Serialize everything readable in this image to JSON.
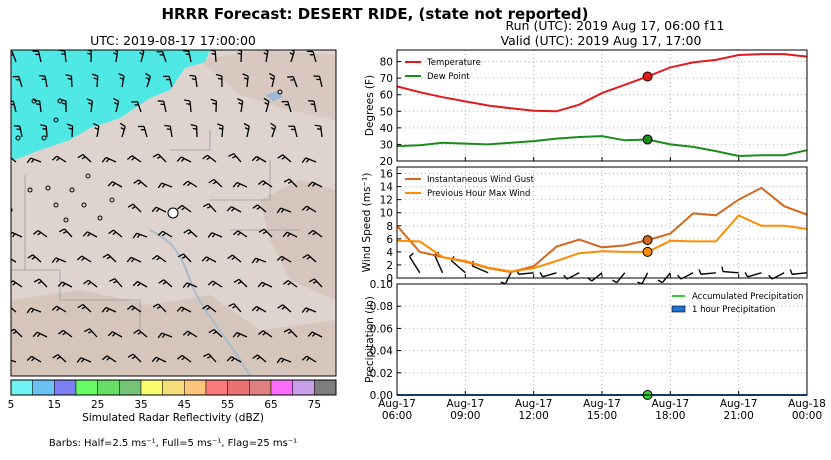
{
  "figure": {
    "title": "HRRR Forecast: DESERT RIDE, (state not reported)",
    "run_label": "Run (UTC): 2019 Aug 17, 06:00 f11",
    "valid_label": "Valid (UTC): 2019 Aug 17, 17:00"
  },
  "map": {
    "utc_label": "UTC: 2019-08-17 17:00:00",
    "colorbar_title": "Simulated Radar Reflectivity (dBZ)",
    "colorbar_ticks": [
      "5",
      "15",
      "25",
      "35",
      "45",
      "55",
      "65",
      "75"
    ],
    "colorbar_colors": [
      "#6ff3f3",
      "#6cc1f5",
      "#7b80f0",
      "#66fb66",
      "#66dd66",
      "#76c276",
      "#fbfb6e",
      "#f5dd7b",
      "#fbc57b",
      "#fb7b7b",
      "#ea7272",
      "#de8080",
      "#fb6efb",
      "#c8a0e8",
      "#7d7d7d"
    ],
    "barbs_note": "Barbs: Half=2.5 ms⁻¹, Full=5 ms⁻¹, Flag=25 ms⁻¹"
  },
  "chart_data": [
    {
      "type": "line",
      "ylabel": "Degrees (F)",
      "ylim": [
        20,
        87
      ],
      "yticks": [
        20,
        30,
        40,
        50,
        60,
        70,
        80
      ],
      "grid": true,
      "legend_placement": "top-left",
      "x_hours": [
        0,
        1,
        2,
        3,
        4,
        5,
        6,
        7,
        8,
        9,
        10,
        11,
        12,
        13,
        14,
        15,
        16,
        17,
        18
      ],
      "series": [
        {
          "name": "Temperature",
          "color": "#e31a1c",
          "values": [
            65,
            61.5,
            58.5,
            56,
            53.5,
            51.8,
            50.3,
            50,
            54,
            61,
            66,
            71,
            76.5,
            79.5,
            81,
            84,
            84.5,
            84.5,
            83
          ]
        },
        {
          "name": "Dew Point",
          "color": "#1a8c1a",
          "values": [
            29,
            29.5,
            31,
            30.5,
            30,
            31,
            32,
            33.5,
            34.5,
            35,
            32.5,
            33,
            30,
            28.5,
            26,
            23,
            23.5,
            23.5,
            26.5
          ]
        }
      ],
      "markers": [
        {
          "series": "Temperature",
          "hour": 11,
          "value": 71
        },
        {
          "series": "Dew Point",
          "hour": 11,
          "value": 33
        }
      ]
    },
    {
      "type": "line",
      "ylabel": "Wind Speed (ms⁻¹)",
      "ylim": [
        0,
        17
      ],
      "yticks": [
        0,
        2,
        4,
        6,
        8,
        10,
        12,
        14,
        16
      ],
      "grid": true,
      "legend_placement": "top-left",
      "x_hours": [
        0,
        1,
        2,
        3,
        4,
        5,
        6,
        7,
        8,
        9,
        10,
        11,
        12,
        13,
        14,
        15,
        16,
        17,
        18
      ],
      "series": [
        {
          "name": "Instantaneous Wind Gust",
          "color": "#d2691e",
          "values": [
            8,
            4,
            3.2,
            2.5,
            1.5,
            0.9,
            1.8,
            4.8,
            5.9,
            4.7,
            5,
            5.8,
            6.8,
            9.9,
            9.6,
            12,
            13.8,
            11,
            9.7
          ]
        },
        {
          "name": "Previous Hour Max Wind",
          "color": "#ff8c00",
          "values": [
            5.7,
            5.6,
            3.2,
            2.6,
            1.6,
            1,
            1.5,
            2.6,
            3.8,
            4.1,
            4,
            4,
            5.7,
            5.6,
            5.6,
            9.6,
            8,
            8,
            7.5
          ]
        }
      ],
      "markers": [
        {
          "series": "Instantaneous Wind Gust",
          "hour": 11,
          "value": 5.8
        },
        {
          "series": "Previous Hour Max Wind",
          "hour": 11,
          "value": 4
        }
      ],
      "barb_directions_deg": [
        310,
        320,
        330,
        300,
        280,
        200,
        250,
        240,
        230,
        220,
        210,
        200,
        210,
        230,
        250,
        260,
        240,
        230,
        250
      ]
    },
    {
      "type": "line",
      "ylabel": "Precipitation (in)",
      "ylim": [
        0,
        0.1
      ],
      "yticks": [
        "0.00",
        "0.02",
        "0.04",
        "0.06",
        "0.08",
        "0.10"
      ],
      "grid": true,
      "legend_placement": "top-right",
      "x_hours": [
        0,
        1,
        2,
        3,
        4,
        5,
        6,
        7,
        8,
        9,
        10,
        11,
        12,
        13,
        14,
        15,
        16,
        17,
        18
      ],
      "series": [
        {
          "name": "Accumulated Precipitation",
          "color": "#33cc33",
          "values": [
            0,
            0,
            0,
            0,
            0,
            0,
            0,
            0,
            0,
            0,
            0,
            0,
            0,
            0,
            0,
            0,
            0,
            0,
            0
          ]
        },
        {
          "name": "1 hour Precipitation",
          "color": "#1e73d2",
          "values": [
            0,
            0,
            0,
            0,
            0,
            0,
            0,
            0,
            0,
            0,
            0,
            0,
            0,
            0,
            0,
            0,
            0,
            0,
            0
          ]
        }
      ],
      "markers": [
        {
          "series": "Accumulated Precipitation",
          "hour": 11,
          "value": 0
        }
      ],
      "xtick_labels": [
        [
          "Aug-17",
          "06:00"
        ],
        [
          "Aug-17",
          "09:00"
        ],
        [
          "Aug-17",
          "12:00"
        ],
        [
          "Aug-17",
          "15:00"
        ],
        [
          "Aug-17",
          "18:00"
        ],
        [
          "Aug-17",
          "21:00"
        ],
        [
          "Aug-18",
          "00:00"
        ]
      ]
    }
  ]
}
